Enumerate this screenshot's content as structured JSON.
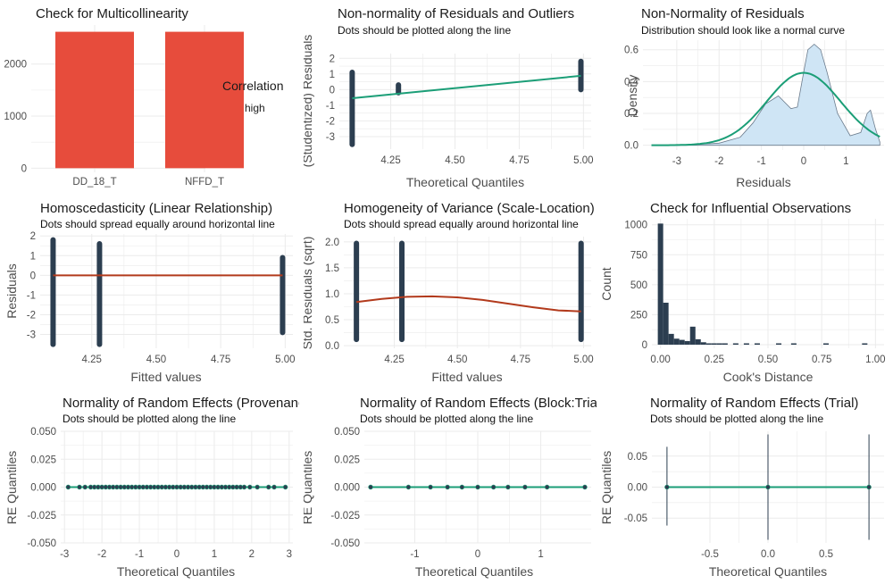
{
  "colors": {
    "bar": "#e74c3c",
    "dark": "#2c3e50",
    "teal": "#1b9e77",
    "red_line": "#b23a1c",
    "density_fill": "#cfe5f5",
    "density_stroke": "#6b7b8c",
    "grid": "#ebebeb"
  },
  "chart_data": [
    {
      "id": "multicollinearity",
      "type": "bar",
      "title": "Check for Multicollinearity",
      "subtitle": "",
      "xlabel": "",
      "ylabel": "",
      "categories": [
        "DD_18_T",
        "NFFD_T"
      ],
      "values": [
        2620,
        2620
      ],
      "ylim": [
        -80,
        2750
      ],
      "yticks": [
        0,
        1000,
        2000
      ],
      "legend": {
        "title": "Correlation",
        "items": [
          "high"
        ],
        "placement": "right"
      }
    },
    {
      "id": "qq_residuals",
      "type": "scatter",
      "title": "Non-normality of Residuals and Outliers",
      "subtitle": "Dots should be plotted along the line",
      "xlabel": "Theoretical Quantiles",
      "ylabel": "(Studentized) Residuals",
      "xlim": [
        4.05,
        5.03
      ],
      "ylim": [
        -3.8,
        2.3
      ],
      "xticks": [
        4.25,
        4.5,
        4.75,
        5.0
      ],
      "xtick_labels": [
        "4.25",
        "4.50",
        "4.75",
        "5.00"
      ],
      "yticks": [
        -3,
        -2,
        -1,
        0,
        1,
        2
      ],
      "points": [
        {
          "x": 4.1,
          "y_from": -3.5,
          "y_to": 1.1
        },
        {
          "x": 4.28,
          "y_from": -0.2,
          "y_to": 0.3
        },
        {
          "x": 4.99,
          "y_from": 0.0,
          "y_to": 1.8
        }
      ],
      "line": [
        [
          4.1,
          -0.55
        ],
        [
          4.99,
          0.88
        ]
      ]
    },
    {
      "id": "density_residuals",
      "type": "area",
      "title": "Non-Normality of Residuals",
      "subtitle": "Distribution should look like a normal curve",
      "xlabel": "Residuals",
      "ylabel": "Density",
      "xlim": [
        -3.8,
        1.9
      ],
      "ylim": [
        -0.03,
        0.66
      ],
      "xticks": [
        -3,
        -2,
        -1,
        0,
        1
      ],
      "yticks": [
        0.0,
        0.2,
        0.4,
        0.6
      ],
      "yticks_labels": [
        "0.0",
        "0.2",
        "0.4",
        "0.6"
      ],
      "density": [
        [
          -3.6,
          0.0
        ],
        [
          -3.0,
          0.003
        ],
        [
          -2.5,
          0.006
        ],
        [
          -2.0,
          0.013
        ],
        [
          -1.5,
          0.05
        ],
        [
          -1.2,
          0.14
        ],
        [
          -0.9,
          0.26
        ],
        [
          -0.6,
          0.31
        ],
        [
          -0.3,
          0.23
        ],
        [
          -0.15,
          0.24
        ],
        [
          0.0,
          0.46
        ],
        [
          0.1,
          0.6
        ],
        [
          0.25,
          0.635
        ],
        [
          0.4,
          0.6
        ],
        [
          0.55,
          0.46
        ],
        [
          0.8,
          0.2
        ],
        [
          1.1,
          0.06
        ],
        [
          1.35,
          0.08
        ],
        [
          1.5,
          0.2
        ],
        [
          1.58,
          0.22
        ],
        [
          1.7,
          0.1
        ],
        [
          1.8,
          0.02
        ]
      ],
      "normal_curve": {
        "mean": 0.0,
        "sd": 0.87,
        "peak": 0.455
      }
    },
    {
      "id": "homoscedasticity",
      "type": "scatter",
      "title": "Homoscedasticity (Linear Relationship)",
      "subtitle": "Dots should spread equally around horizontal line",
      "xlabel": "Fitted values",
      "ylabel": "Residuals",
      "xlim": [
        4.05,
        5.03
      ],
      "ylim": [
        -3.7,
        2.1
      ],
      "xticks": [
        4.25,
        4.5,
        4.75,
        5.0
      ],
      "xtick_labels": [
        "4.25",
        "4.50",
        "4.75",
        "5.00"
      ],
      "yticks": [
        -3,
        -2,
        -1,
        0,
        1,
        2
      ],
      "points": [
        {
          "x": 4.1,
          "y_from": -3.5,
          "y_to": 1.8
        },
        {
          "x": 4.28,
          "y_from": -3.5,
          "y_to": 1.6
        },
        {
          "x": 4.99,
          "y_from": -2.9,
          "y_to": 0.9
        }
      ],
      "line": [
        [
          4.1,
          0.0
        ],
        [
          4.99,
          0.0
        ]
      ]
    },
    {
      "id": "homogeneity_variance",
      "type": "scatter",
      "title": "Homogeneity of Variance (Scale-Location)",
      "subtitle": "Dots should spread equally around horizontal line",
      "xlabel": "Fitted values",
      "ylabel": "Std. Residuals (sqrt)",
      "xlim": [
        4.05,
        5.03
      ],
      "ylim": [
        -0.05,
        2.1
      ],
      "xticks": [
        4.25,
        4.5,
        4.75,
        5.0
      ],
      "xtick_labels": [
        "4.25",
        "4.50",
        "4.75",
        "5.00"
      ],
      "yticks": [
        0.0,
        0.5,
        1.0,
        1.5,
        2.0
      ],
      "ytick_labels": [
        "0.0",
        "0.5",
        "1.0",
        "1.5",
        "2.0"
      ],
      "points": [
        {
          "x": 4.1,
          "y_from": 0.12,
          "y_to": 1.97
        },
        {
          "x": 4.28,
          "y_from": 0.12,
          "y_to": 1.97
        },
        {
          "x": 4.99,
          "y_from": 0.12,
          "y_to": 1.97
        }
      ],
      "curve": [
        [
          4.1,
          0.84
        ],
        [
          4.2,
          0.9
        ],
        [
          4.3,
          0.94
        ],
        [
          4.4,
          0.95
        ],
        [
          4.5,
          0.93
        ],
        [
          4.6,
          0.88
        ],
        [
          4.7,
          0.81
        ],
        [
          4.8,
          0.74
        ],
        [
          4.9,
          0.68
        ],
        [
          4.99,
          0.66
        ]
      ]
    },
    {
      "id": "influential",
      "type": "bar",
      "title": "Check for Influential Observations",
      "subtitle": "",
      "xlabel": "Cook's Distance",
      "ylabel": "Count",
      "xlim": [
        -0.04,
        1.04
      ],
      "ylim": [
        -30,
        1050
      ],
      "xticks": [
        0.0,
        0.25,
        0.5,
        0.75,
        1.0
      ],
      "xtick_labels": [
        "0.00",
        "0.25",
        "0.50",
        "0.75",
        "1.00"
      ],
      "yticks": [
        0,
        250,
        500,
        750,
        1000
      ],
      "bin_width": 0.025,
      "bins": [
        [
          0.0,
          1010
        ],
        [
          0.025,
          350
        ],
        [
          0.05,
          90
        ],
        [
          0.075,
          50
        ],
        [
          0.1,
          40
        ],
        [
          0.125,
          30
        ],
        [
          0.15,
          150
        ],
        [
          0.175,
          45
        ],
        [
          0.2,
          20
        ],
        [
          0.225,
          10
        ],
        [
          0.25,
          5
        ],
        [
          0.275,
          3
        ],
        [
          0.3,
          3
        ],
        [
          0.35,
          2
        ],
        [
          0.4,
          2
        ],
        [
          0.45,
          2
        ],
        [
          0.55,
          2
        ],
        [
          0.62,
          2
        ],
        [
          0.77,
          2
        ],
        [
          0.95,
          2
        ]
      ]
    },
    {
      "id": "re_provenance",
      "type": "scatter",
      "title": "Normality of Random Effects (Provenance)",
      "subtitle": "Dots should be plotted along the line",
      "xlabel": "Theoretical Quantiles",
      "ylabel": "RE Quantiles",
      "xlim": [
        -3.1,
        3.1
      ],
      "ylim": [
        -0.05,
        0.05
      ],
      "xticks": [
        -3,
        -2,
        -1,
        0,
        1,
        2,
        3
      ],
      "yticks": [
        -0.05,
        -0.025,
        0.0,
        0.025,
        0.05
      ],
      "ytick_labels": [
        "-0.050",
        "-0.025",
        "0.000",
        "0.025",
        "0.050"
      ],
      "points_x": [
        -2.9,
        -2.6,
        -2.45,
        -2.3,
        -2.2,
        -2.1,
        -2.0,
        -1.9,
        -1.8,
        -1.7,
        -1.6,
        -1.5,
        -1.4,
        -1.3,
        -1.2,
        -1.1,
        -1.0,
        -0.9,
        -0.8,
        -0.7,
        -0.6,
        -0.5,
        -0.4,
        -0.3,
        -0.2,
        -0.1,
        0.0,
        0.1,
        0.2,
        0.3,
        0.4,
        0.5,
        0.6,
        0.7,
        0.8,
        0.9,
        1.0,
        1.1,
        1.2,
        1.3,
        1.4,
        1.5,
        1.6,
        1.7,
        1.8,
        1.95,
        2.15,
        2.45,
        2.6,
        2.9
      ],
      "y": 0.0
    },
    {
      "id": "re_block_trial",
      "type": "scatter",
      "title": "Normality of Random Effects (Block:Trial)",
      "subtitle": "Dots should be plotted along the line",
      "xlabel": "Theoretical Quantiles",
      "ylabel": "RE Quantiles",
      "xlim": [
        -1.8,
        1.8
      ],
      "ylim": [
        -0.05,
        0.05
      ],
      "xticks": [
        -1,
        0,
        1
      ],
      "yticks": [
        -0.05,
        -0.025,
        0.0,
        0.025,
        0.05
      ],
      "ytick_labels": [
        "-0.050",
        "-0.025",
        "0.000",
        "0.025",
        "0.050"
      ],
      "points_x": [
        -1.7,
        -1.1,
        -0.75,
        -0.48,
        -0.25,
        0.0,
        0.25,
        0.48,
        0.75,
        1.1,
        1.7
      ],
      "y": 0.0
    },
    {
      "id": "re_trial",
      "type": "scatter",
      "title": "Normality of Random Effects (Trial)",
      "subtitle": "Dots should be plotted along the line",
      "xlabel": "Theoretical Quantiles",
      "ylabel": "RE Quantiles",
      "xlim": [
        -1.0,
        1.0
      ],
      "ylim": [
        -0.09,
        0.09
      ],
      "xticks": [
        -0.5,
        0.0,
        0.5
      ],
      "xtick_labels": [
        "-0.5",
        "0.0",
        "0.5"
      ],
      "yticks": [
        -0.05,
        0.0,
        0.05
      ],
      "ytick_labels": [
        "-0.05",
        "0.00",
        "0.05"
      ],
      "points_x": [
        -0.87,
        0.0,
        0.87
      ],
      "y": 0.0,
      "errorbars": [
        [
          -0.87,
          -0.062,
          0.065
        ],
        [
          0.0,
          -0.085,
          0.085
        ],
        [
          0.87,
          -0.085,
          0.085
        ]
      ]
    }
  ]
}
